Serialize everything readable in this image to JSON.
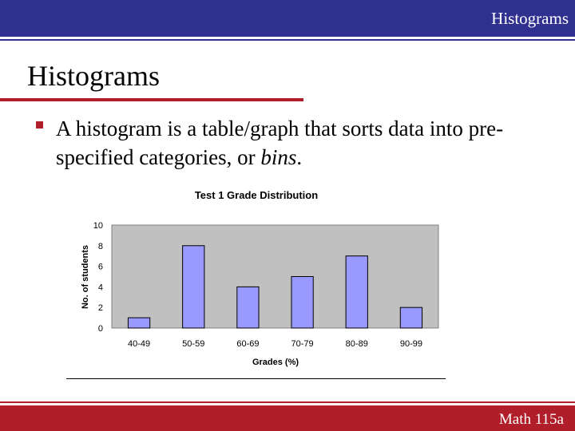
{
  "header": {
    "title": "Histograms"
  },
  "slide": {
    "title": "Histograms",
    "bullet": {
      "prefix": "A histogram is a table/graph that sorts data into pre-specified categories, or ",
      "emphasis": "bins",
      "suffix": "."
    }
  },
  "footer": {
    "label": "Math 115a"
  },
  "colors": {
    "top_bar": "#303090",
    "accent_red": "#b01e2a",
    "plot_area": "#c0c0c0",
    "bar_fill": "#9999ff"
  },
  "chart_data": {
    "type": "bar",
    "title": "Test 1 Grade Distribution",
    "xlabel": "Grades (%)",
    "ylabel": "No. of students",
    "categories": [
      "40-49",
      "50-59",
      "60-69",
      "70-79",
      "80-89",
      "90-99"
    ],
    "values": [
      1,
      8,
      4,
      5,
      7,
      2
    ],
    "ylim": [
      0,
      10
    ],
    "yticks": [
      0,
      2,
      4,
      6,
      8,
      10
    ],
    "grid": false,
    "legend": "none"
  }
}
